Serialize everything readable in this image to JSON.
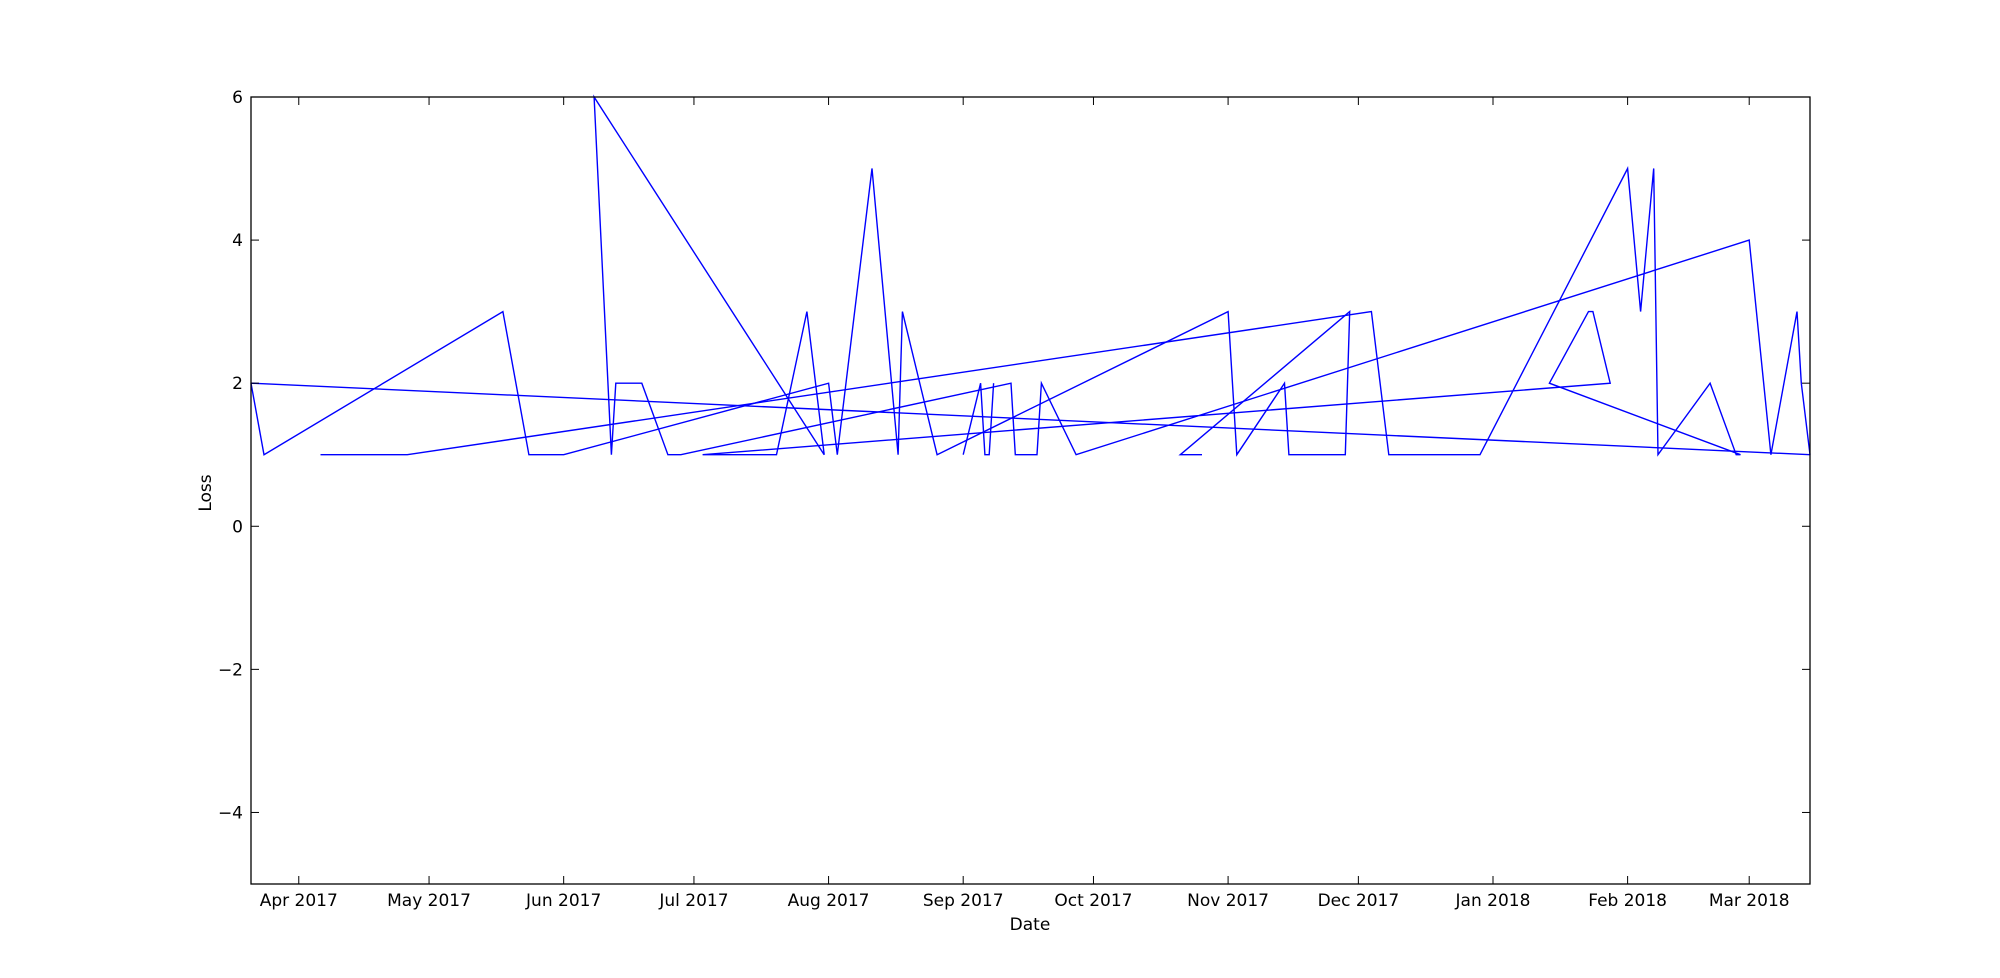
{
  "chart_data": {
    "type": "line",
    "title": "",
    "xlabel": "Date",
    "ylabel": "Loss",
    "x_axis_type": "date",
    "xlim": [
      "2017-03-21",
      "2018-03-15"
    ],
    "ylim": [
      -5,
      6
    ],
    "grid": false,
    "legend": "none",
    "x_tick_labels": [
      "Apr 2017",
      "May 2017",
      "Jun 2017",
      "Jul 2017",
      "Aug 2017",
      "Sep 2017",
      "Oct 2017",
      "Nov 2017",
      "Dec 2017",
      "Jan 2018",
      "Feb 2018",
      "Mar 2018"
    ],
    "x_tick_dates": [
      "2017-04-01",
      "2017-05-01",
      "2017-06-01",
      "2017-07-01",
      "2017-08-01",
      "2017-09-01",
      "2017-10-01",
      "2017-11-01",
      "2017-12-01",
      "2018-01-01",
      "2018-02-01",
      "2018-03-01"
    ],
    "y_ticks": [
      -4,
      -2,
      0,
      2,
      4,
      6
    ],
    "y_tick_labels": [
      "−4",
      "−2",
      "0",
      "2",
      "4",
      "6"
    ],
    "series": [
      {
        "color": "#0000ff",
        "points": [
          [
            "2017-03-21",
            2
          ],
          [
            "2017-03-24",
            1
          ],
          [
            "2017-05-18",
            3
          ],
          [
            "2017-05-24",
            1
          ],
          [
            "2017-06-01",
            1
          ],
          [
            "2017-08-01",
            2
          ],
          [
            "2017-08-03",
            1
          ],
          [
            "2017-08-11",
            5
          ],
          [
            "2017-08-17",
            1
          ],
          [
            "2017-08-18",
            3
          ],
          [
            "2017-08-26",
            1
          ],
          [
            "2017-11-01",
            3
          ],
          [
            "2017-11-03",
            1
          ],
          [
            "2017-11-14",
            2
          ],
          [
            "2017-11-15",
            1
          ],
          [
            "2017-11-28",
            1
          ],
          [
            "2017-11-29",
            3
          ],
          [
            "2017-10-21",
            1
          ],
          [
            "2017-10-26",
            1
          ]
        ]
      },
      {
        "color": "#0000ff",
        "points": [
          [
            "2017-04-06",
            1
          ],
          [
            "2017-04-26",
            1
          ],
          [
            "2017-12-04",
            3
          ],
          [
            "2017-12-08",
            1
          ],
          [
            "2017-12-29",
            1
          ],
          [
            "2018-02-01",
            5
          ],
          [
            "2018-02-04",
            3
          ],
          [
            "2018-02-07",
            5
          ],
          [
            "2018-02-08",
            1
          ],
          [
            "2018-02-20",
            2
          ],
          [
            "2018-02-26",
            1
          ],
          [
            "2018-02-27",
            1
          ],
          [
            "2018-01-14",
            2
          ],
          [
            "2018-01-23",
            3
          ],
          [
            "2018-01-24",
            3
          ],
          [
            "2018-01-28",
            2
          ],
          [
            "2017-07-03",
            1
          ],
          [
            "2017-07-20",
            1
          ],
          [
            "2017-07-27",
            3
          ],
          [
            "2017-07-31",
            1
          ],
          [
            "2017-06-08",
            6
          ],
          [
            "2017-06-12",
            1
          ],
          [
            "2017-06-13",
            2
          ],
          [
            "2017-06-19",
            2
          ],
          [
            "2017-06-25",
            1
          ],
          [
            "2017-06-28",
            1
          ],
          [
            "2017-09-12",
            2
          ],
          [
            "2017-09-13",
            1
          ],
          [
            "2017-09-18",
            1
          ],
          [
            "2017-09-19",
            2
          ],
          [
            "2017-09-27",
            1
          ],
          [
            "2018-03-01",
            4
          ],
          [
            "2018-03-06",
            1
          ],
          [
            "2018-03-12",
            3
          ],
          [
            "2018-03-13",
            2
          ],
          [
            "2018-03-15",
            1
          ]
        ]
      },
      {
        "color": "#0000ff",
        "points": [
          [
            "2017-09-01",
            1
          ],
          [
            "2017-09-05",
            2
          ],
          [
            "2017-09-06",
            1
          ],
          [
            "2017-09-07",
            1
          ],
          [
            "2017-09-08",
            2
          ]
        ]
      },
      {
        "color": "#0000ff",
        "points": [
          [
            "2018-03-15",
            1
          ],
          [
            "2017-03-21",
            2
          ]
        ]
      }
    ]
  }
}
